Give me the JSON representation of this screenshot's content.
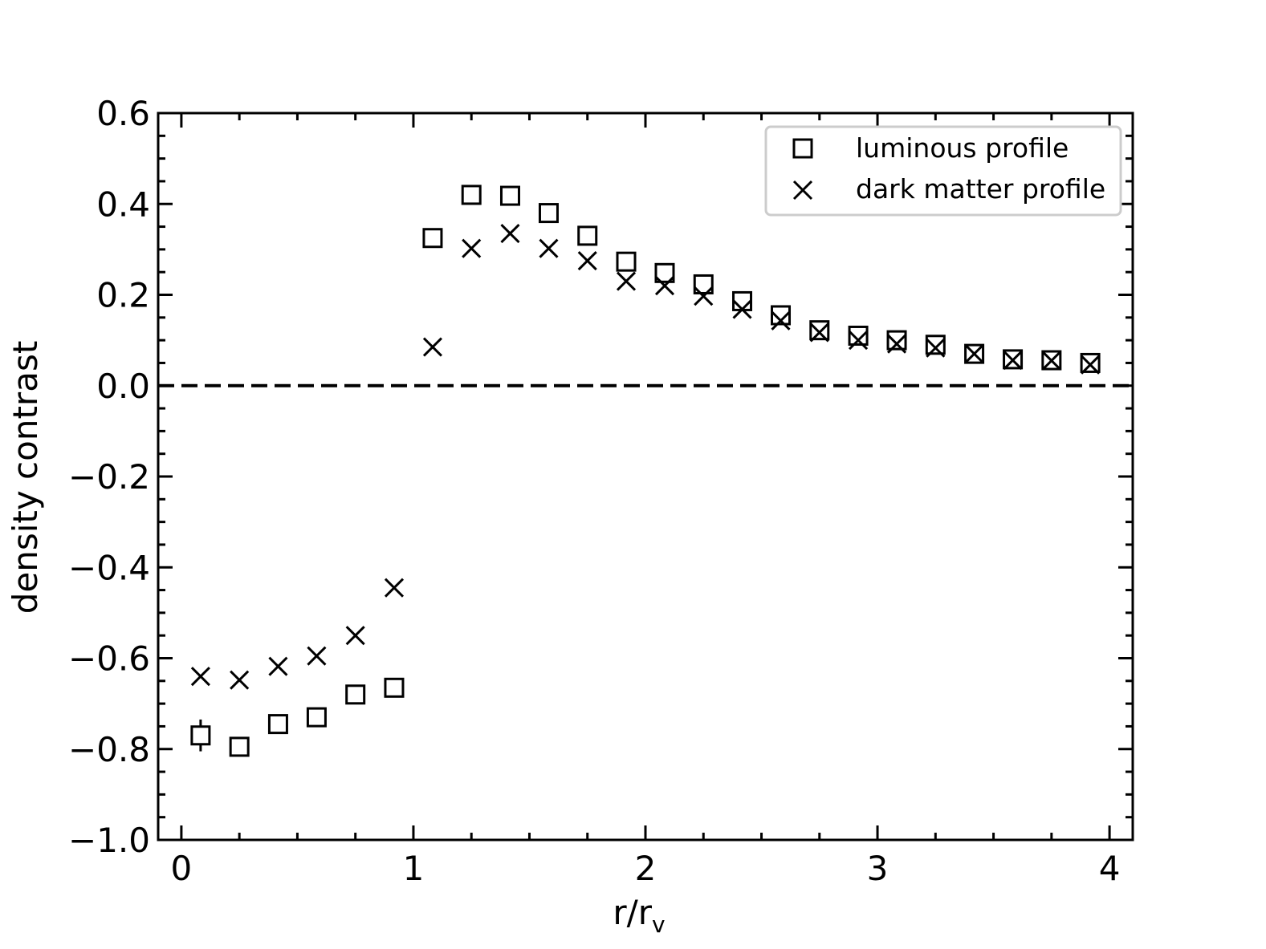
{
  "chart_data": {
    "type": "scatter",
    "xlabel": "r/r",
    "xlabel_sub": "v",
    "ylabel": "density contrast",
    "xlim": [
      -0.1,
      4.1
    ],
    "ylim": [
      -1.0,
      0.6
    ],
    "xticks": [
      0,
      1,
      2,
      3,
      4
    ],
    "xtick_labels": [
      "0",
      "1",
      "2",
      "3",
      "4"
    ],
    "yticks": [
      -1.0,
      -0.8,
      -0.6,
      -0.4,
      -0.2,
      0.0,
      0.2,
      0.4,
      0.6
    ],
    "ytick_labels": [
      "−1.0",
      "−0.8",
      "−0.6",
      "−0.4",
      "−0.2",
      "0.0",
      "0.2",
      "0.4",
      "0.6"
    ],
    "reference_line_y": 0.0,
    "grid": false,
    "legend_position": "top-right",
    "series": [
      {
        "name": "luminous profile",
        "marker": "square",
        "x": [
          0.083,
          0.25,
          0.417,
          0.583,
          0.75,
          0.917,
          1.083,
          1.25,
          1.417,
          1.583,
          1.75,
          1.917,
          2.083,
          2.25,
          2.417,
          2.583,
          2.75,
          2.917,
          3.083,
          3.25,
          3.417,
          3.583,
          3.75,
          3.917
        ],
        "y": [
          -0.77,
          -0.795,
          -0.745,
          -0.73,
          -0.68,
          -0.665,
          0.325,
          0.42,
          0.418,
          0.38,
          0.33,
          0.273,
          0.248,
          0.223,
          0.186,
          0.155,
          0.122,
          0.11,
          0.1,
          0.09,
          0.07,
          0.058,
          0.056,
          0.05
        ],
        "yerr": [
          0.035,
          0.0,
          0.0,
          0.0,
          0.0,
          0.0,
          0.0,
          0.0,
          0.0,
          0.0,
          0.0,
          0.0,
          0.0,
          0.0,
          0.0,
          0.0,
          0.0,
          0.0,
          0.0,
          0.0,
          0.0,
          0.0,
          0.0,
          0.0
        ]
      },
      {
        "name": "dark matter profile",
        "marker": "x",
        "x": [
          0.083,
          0.25,
          0.417,
          0.583,
          0.75,
          0.917,
          1.083,
          1.25,
          1.417,
          1.583,
          1.75,
          1.917,
          2.083,
          2.25,
          2.417,
          2.583,
          2.75,
          2.917,
          3.083,
          3.25,
          3.417,
          3.583,
          3.75,
          3.917
        ],
        "y": [
          -0.64,
          -0.648,
          -0.618,
          -0.595,
          -0.55,
          -0.445,
          0.085,
          0.302,
          0.335,
          0.302,
          0.275,
          0.23,
          0.22,
          0.197,
          0.168,
          0.143,
          0.117,
          0.1,
          0.092,
          0.083,
          0.07,
          0.056,
          0.055,
          0.046
        ]
      }
    ]
  }
}
